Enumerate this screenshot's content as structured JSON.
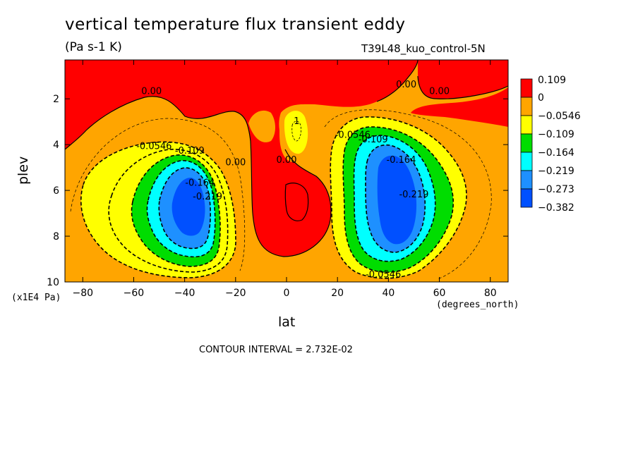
{
  "chart_data": {
    "type": "heatmap",
    "title": "vertical temperature flux transient eddy",
    "units": "(Pa s-1 K)",
    "dataset_label": "T39L48_kuo_control-5N",
    "xlabel": "lat",
    "xunit": "(degrees_north)",
    "ylabel": "plev",
    "yunit": "(x1E4 Pa)",
    "xlim": [
      -87,
      87
    ],
    "ylim": [
      0.3,
      10
    ],
    "y_inverted": true,
    "x_ticks": [
      -80,
      -60,
      -40,
      -20,
      0,
      20,
      40,
      60,
      80
    ],
    "x_tick_labels": [
      "−80",
      "−60",
      "−40",
      "−20",
      "0",
      "20",
      "40",
      "60",
      "80"
    ],
    "y_ticks": [
      2,
      4,
      6,
      8,
      10
    ],
    "y_tick_labels": [
      "2",
      "4",
      "6",
      "8",
      "10"
    ],
    "contour_interval_text": "CONTOUR INTERVAL = 2.732E-02",
    "legend": {
      "placement": "right",
      "levels": [
        {
          "label": "0.109",
          "color": "#ff0000"
        },
        {
          "label": "0",
          "color": "#ffa500"
        },
        {
          "label": "−0.0546",
          "color": "#ffff00"
        },
        {
          "label": "−0.109",
          "color": "#00dd00"
        },
        {
          "label": "−0.164",
          "color": "#00ffff"
        },
        {
          "label": "−0.219",
          "color": "#1e90ff"
        },
        {
          "label": "−0.273",
          "color": "#0050ff"
        },
        {
          "label": "−0.382",
          "color": ""
        }
      ]
    },
    "background_color": "#ffa500",
    "features": [
      {
        "type": "min",
        "lat": -38,
        "plev": 6.3,
        "value": -0.33,
        "color": "#0050ff"
      },
      {
        "type": "min",
        "lat": 42,
        "plev": 6.0,
        "value": -0.33,
        "color": "#0050ff"
      },
      {
        "type": "max",
        "lat": -5,
        "plev": 3.0,
        "value": 0.06,
        "color": "#ff0000"
      },
      {
        "type": "max",
        "lat": 6,
        "plev": 7.0,
        "value": 0.06,
        "color": "#ff0000"
      }
    ],
    "contour_labels": [
      {
        "text": "0.00",
        "lat": -53,
        "plev": 1.8
      },
      {
        "text": "0.00",
        "lat": 47,
        "plev": 1.5
      },
      {
        "text": "0.00",
        "lat": 60,
        "plev": 1.8
      },
      {
        "text": "0.00",
        "lat": -20,
        "plev": 4.9
      },
      {
        "text": "0.00",
        "lat": 0,
        "plev": 4.8
      },
      {
        "text": "-0.0546",
        "lat": -52,
        "plev": 4.2
      },
      {
        "text": "-0.109",
        "lat": -38,
        "plev": 4.4
      },
      {
        "text": "-0.164",
        "lat": -34,
        "plev": 5.8
      },
      {
        "text": "-0.219",
        "lat": -31,
        "plev": 6.4
      },
      {
        "text": "-0.0546",
        "lat": 26,
        "plev": 3.7
      },
      {
        "text": "-0.109",
        "lat": 34,
        "plev": 3.9
      },
      {
        "text": "-0.164",
        "lat": 45,
        "plev": 4.8
      },
      {
        "text": "-0.219",
        "lat": 50,
        "plev": 6.3
      },
      {
        "text": "-0.0546",
        "lat": 38,
        "plev": 9.8
      },
      {
        "text": "1",
        "lat": 4,
        "plev": 3.1
      }
    ]
  }
}
